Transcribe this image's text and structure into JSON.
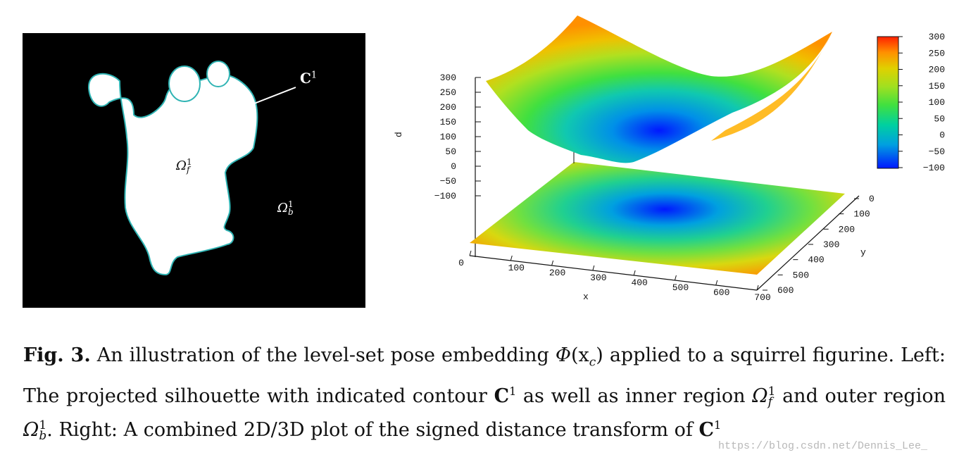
{
  "left_panel": {
    "contour_label": "C",
    "contour_sup": "1",
    "inner_label": "Ω",
    "inner_sub": "f",
    "inner_sup": "1",
    "outer_label": "Ω",
    "outer_sub": "b",
    "outer_sup": "1",
    "background_color": "#000000",
    "silhouette_color": "#ffffff",
    "contour_color": "#30b4b4"
  },
  "chart_data": {
    "type": "surface",
    "xlabel": "x",
    "ylabel": "y",
    "zlabel": "d",
    "x_ticks": [
      "0",
      "100",
      "200",
      "300",
      "400",
      "500",
      "600",
      "700"
    ],
    "y_ticks": [
      "0",
      "100",
      "200",
      "300",
      "400",
      "500",
      "600"
    ],
    "z_ticks": [
      "300",
      "250",
      "200",
      "150",
      "100",
      "50",
      "0",
      "−50",
      "−100"
    ],
    "colorbar_ticks": [
      "300",
      "250",
      "200",
      "150",
      "100",
      "50",
      "0",
      "−50",
      "−100"
    ],
    "xlim": [
      0,
      700
    ],
    "ylim": [
      0,
      600
    ],
    "zlim": [
      -100,
      300
    ],
    "colormap": [
      "#0018ff",
      "#00a0e0",
      "#00d0a0",
      "#40e040",
      "#a0e020",
      "#e0d000",
      "#ff9000",
      "#ff2000"
    ]
  },
  "caption": {
    "label": "Fig. 3.",
    "part1": "An illustration of the level-set pose embedding",
    "phi": "Φ",
    "xc": "(x",
    "xc_sub": "c",
    "close": ")",
    "part2": "applied to a squirrel figurine. Left: The projected silhouette with indicated contour",
    "c1": "C",
    "c1_sup": "1",
    "part3": "as well as inner region",
    "omega_f": "Ω",
    "omega_f_sub": "f",
    "omega_f_sup": "1",
    "part4": "and outer region",
    "omega_b": "Ω",
    "omega_b_sub": "b",
    "omega_b_sup": "1",
    "part5": ". Right: A combined 2D/3D plot of the signed distance transform of",
    "c2": "C",
    "c2_sup": "1"
  },
  "watermark": "https://blog.csdn.net/Dennis_Lee_"
}
